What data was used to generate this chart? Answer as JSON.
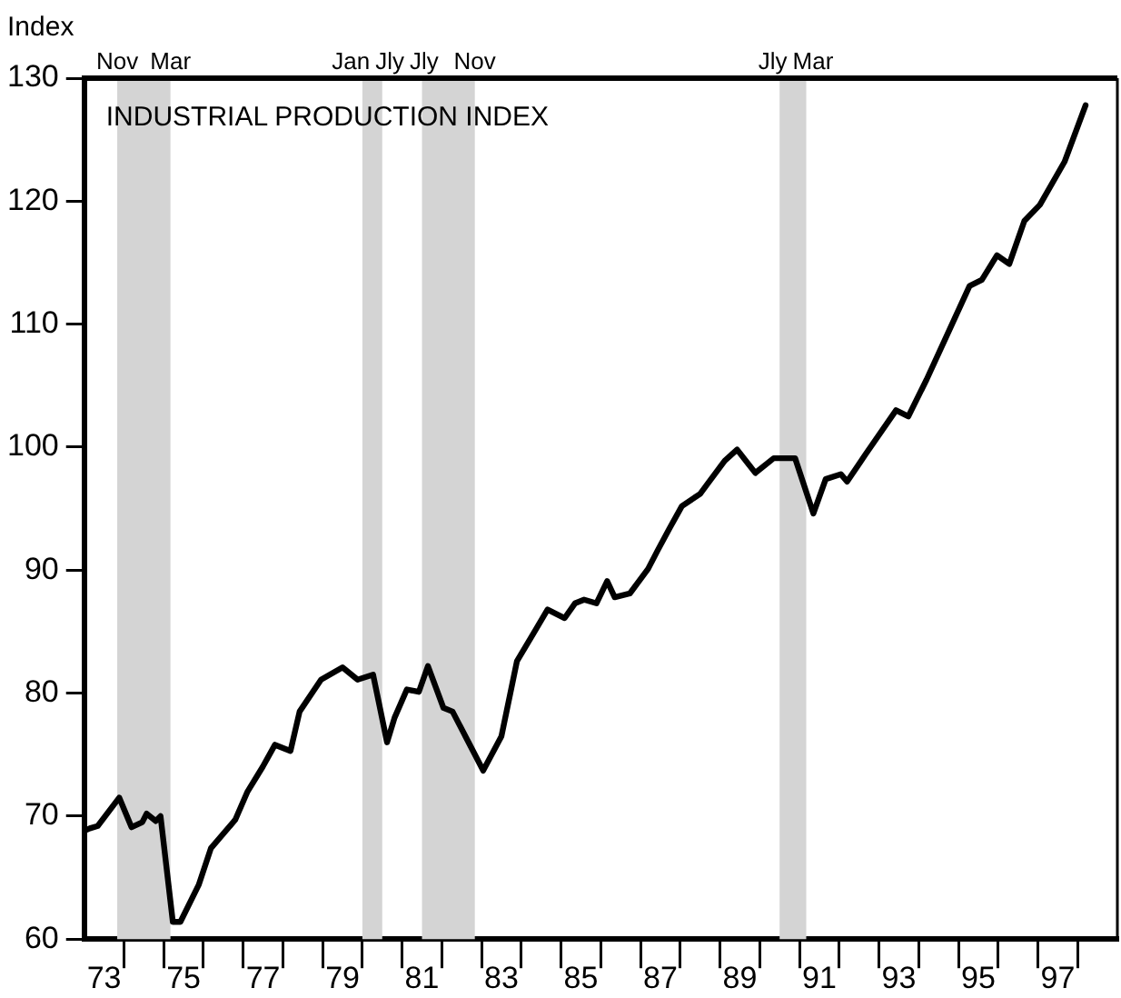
{
  "chart_data": {
    "type": "line",
    "title": "INDUSTRIAL PRODUCTION INDEX",
    "ylabel": "Index",
    "x": [
      73.0,
      73.14,
      73.34,
      73.88,
      74.19,
      74.46,
      74.57,
      74.8,
      74.92,
      75.23,
      75.42,
      75.88,
      76.19,
      76.8,
      77.11,
      77.49,
      77.8,
      78.19,
      78.42,
      78.96,
      79.5,
      79.88,
      80.27,
      80.62,
      80.81,
      81.12,
      81.42,
      81.65,
      82.04,
      82.27,
      83.04,
      83.5,
      83.89,
      84.35,
      84.66,
      85.09,
      85.35,
      85.58,
      85.89,
      86.16,
      86.35,
      86.73,
      87.19,
      87.43,
      87.73,
      88.04,
      88.5,
      88.66,
      89.12,
      89.43,
      89.89,
      90.35,
      90.89,
      91.35,
      91.66,
      92.04,
      92.2,
      92.66,
      93.43,
      93.74,
      94.2,
      94.74,
      95.28,
      95.59,
      95.97,
      96.28,
      96.66,
      97.05,
      97.67,
      98.2
    ],
    "series": [
      {
        "color": "#000000",
        "values": [
          68.8,
          69.0,
          69.2,
          71.5,
          69.1,
          69.5,
          70.2,
          69.6,
          70.0,
          61.4,
          61.4,
          64.4,
          67.4,
          69.7,
          72.0,
          74.0,
          75.8,
          75.3,
          78.5,
          81.1,
          82.1,
          81.1,
          81.5,
          76.0,
          78.0,
          80.3,
          80.1,
          82.2,
          78.8,
          78.5,
          73.7,
          76.5,
          82.6,
          85.1,
          86.8,
          86.1,
          87.3,
          87.6,
          87.3,
          89.1,
          87.8,
          88.1,
          90.1,
          91.6,
          93.4,
          95.2,
          96.2,
          96.9,
          98.9,
          99.8,
          97.9,
          99.1,
          99.1,
          94.6,
          97.4,
          97.8,
          97.2,
          99.4,
          103.0,
          102.5,
          105.5,
          109.3,
          113.1,
          113.6,
          115.6,
          114.9,
          118.4,
          119.7,
          123.2,
          127.8
        ]
      }
    ],
    "xlim": [
      73,
      99
    ],
    "xticks": [
      {
        "value": 73.5,
        "label": "73"
      },
      {
        "value": 74,
        "label": null
      },
      {
        "value": 75,
        "label": null
      },
      {
        "value": 75.5,
        "label": "75"
      },
      {
        "value": 76,
        "label": null
      },
      {
        "value": 77,
        "label": null
      },
      {
        "value": 77.5,
        "label": "77"
      },
      {
        "value": 78,
        "label": null
      },
      {
        "value": 79,
        "label": null
      },
      {
        "value": 79.5,
        "label": "79"
      },
      {
        "value": 80,
        "label": null
      },
      {
        "value": 81,
        "label": null
      },
      {
        "value": 81.5,
        "label": "81"
      },
      {
        "value": 82,
        "label": null
      },
      {
        "value": 83,
        "label": null
      },
      {
        "value": 83.5,
        "label": "83"
      },
      {
        "value": 84,
        "label": null
      },
      {
        "value": 85,
        "label": null
      },
      {
        "value": 85.5,
        "label": "85"
      },
      {
        "value": 86,
        "label": null
      },
      {
        "value": 87,
        "label": null
      },
      {
        "value": 87.5,
        "label": "87"
      },
      {
        "value": 88,
        "label": null
      },
      {
        "value": 89,
        "label": null
      },
      {
        "value": 89.5,
        "label": "89"
      },
      {
        "value": 90,
        "label": null
      },
      {
        "value": 91,
        "label": null
      },
      {
        "value": 91.5,
        "label": "91"
      },
      {
        "value": 92,
        "label": null
      },
      {
        "value": 93,
        "label": null
      },
      {
        "value": 93.5,
        "label": "93"
      },
      {
        "value": 94,
        "label": null
      },
      {
        "value": 95,
        "label": null
      },
      {
        "value": 95.5,
        "label": "95"
      },
      {
        "value": 96,
        "label": null
      },
      {
        "value": 97,
        "label": null
      },
      {
        "value": 97.5,
        "label": "97"
      },
      {
        "value": 98,
        "label": null
      }
    ],
    "ylim": [
      60,
      130
    ],
    "yticks": [
      60,
      70,
      80,
      90,
      100,
      110,
      120,
      130
    ],
    "bands": [
      {
        "axis": "x",
        "from": 73.83,
        "to": 75.17,
        "color": "#d4d4d4"
      },
      {
        "axis": "x",
        "from": 80.0,
        "to": 80.5,
        "color": "#d4d4d4"
      },
      {
        "axis": "x",
        "from": 81.5,
        "to": 82.83,
        "color": "#d4d4d4"
      },
      {
        "axis": "x",
        "from": 90.5,
        "to": 91.17,
        "color": "#d4d4d4"
      }
    ],
    "annotations": [
      {
        "text": "Nov",
        "x": 73.83,
        "y": 130
      },
      {
        "text": "Mar",
        "x": 75.17,
        "y": 130
      },
      {
        "text": "Jan",
        "x": 80.0,
        "y": 130
      },
      {
        "text": "Jly",
        "x": 80.5,
        "y": 130
      },
      {
        "text": "Jly",
        "x": 81.5,
        "y": 130
      },
      {
        "text": "Nov",
        "x": 82.83,
        "y": 130
      },
      {
        "text": "Jly",
        "x": 90.5,
        "y": 130
      },
      {
        "text": "Mar",
        "x": 91.17,
        "y": 130
      }
    ],
    "grid": false,
    "legend": false,
    "marker": "none",
    "line_style": "solid"
  }
}
